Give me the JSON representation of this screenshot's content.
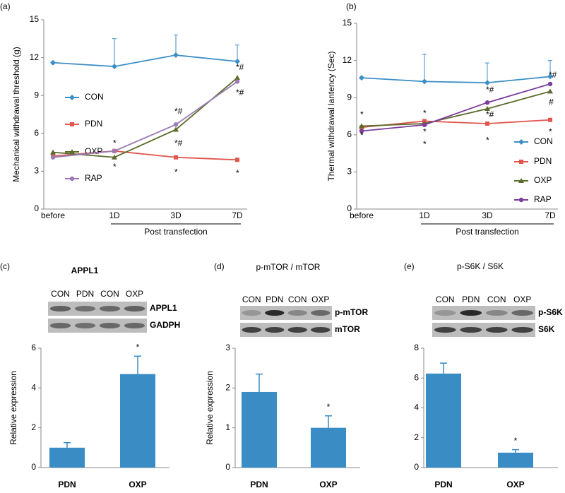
{
  "chart_data": [
    {
      "type": "line",
      "panel": "(a)",
      "ylabel": "Mechanical withdrawal threshold (g)",
      "xlabel": "Post transfection",
      "categories": [
        "before",
        "1D",
        "3D",
        "7D"
      ],
      "ylim": [
        0,
        15
      ],
      "yticks": [
        0,
        3,
        6,
        9,
        12,
        15
      ],
      "series": [
        {
          "name": "CON",
          "color": "#3b8fc7",
          "marker": "diamond",
          "values": [
            11.6,
            11.3,
            12.2,
            11.7
          ],
          "errors": [
            null,
            2.2,
            1.6,
            1.3
          ]
        },
        {
          "name": "PDN",
          "color": "#e0564e",
          "marker": "square",
          "values": [
            4.2,
            4.6,
            4.1,
            3.9
          ]
        },
        {
          "name": "OXP",
          "color": "#5a6b2a",
          "marker": "triangle",
          "values": [
            4.5,
            4.1,
            6.3,
            10.4
          ]
        },
        {
          "name": "RAP",
          "color": "#9b7ab5",
          "marker": "circle",
          "values": [
            4.1,
            4.6,
            6.7,
            10.1
          ]
        }
      ],
      "annotations": [
        {
          "text": "*",
          "x": "1D",
          "y": 5.2
        },
        {
          "text": "*",
          "x": "1D",
          "y": 3.3
        },
        {
          "text": "*",
          "x": "3D",
          "y": 2.9
        },
        {
          "text": "*#",
          "x": "3D",
          "y": 7.7
        },
        {
          "text": "*#",
          "x": "3D",
          "y": 5.2
        },
        {
          "text": "*#",
          "x": "7D",
          "y": 11.2
        },
        {
          "text": "*#",
          "x": "7D",
          "y": 9.2
        },
        {
          "text": "*",
          "x": "7D",
          "y": 2.8
        }
      ]
    },
    {
      "type": "line",
      "panel": "(b)",
      "ylabel": "Thermal withdrawal lantency (Sec)",
      "xlabel": "Post transfection",
      "categories": [
        "before",
        "1D",
        "3D",
        "7D"
      ],
      "ylim": [
        0,
        15
      ],
      "yticks": [
        0,
        3,
        6,
        9,
        12,
        15
      ],
      "series": [
        {
          "name": "CON",
          "color": "#3b8fc7",
          "marker": "diamond",
          "values": [
            10.6,
            10.3,
            10.2,
            10.7
          ],
          "errors": [
            null,
            2.2,
            1.6,
            1.3
          ]
        },
        {
          "name": "PDN",
          "color": "#e0564e",
          "marker": "square",
          "values": [
            6.6,
            7.1,
            6.9,
            7.2
          ]
        },
        {
          "name": "OXP",
          "color": "#5a6b2a",
          "marker": "triangle",
          "values": [
            6.7,
            6.9,
            8.1,
            9.5
          ]
        },
        {
          "name": "RAP",
          "color": "#7b3d9a",
          "marker": "circle",
          "values": [
            6.3,
            6.8,
            8.6,
            10.1
          ]
        }
      ],
      "annotations": [
        {
          "text": "*",
          "x": "before",
          "y": 7.6
        },
        {
          "text": "*",
          "x": "before",
          "y": 5.9
        },
        {
          "text": "*",
          "x": "1D",
          "y": 7.7
        },
        {
          "text": "*",
          "x": "1D",
          "y": 6.2
        },
        {
          "text": "*",
          "x": "1D",
          "y": 5.2
        },
        {
          "text": "*#",
          "x": "3D",
          "y": 9.6
        },
        {
          "text": "*#",
          "x": "3D",
          "y": 7.6
        },
        {
          "text": "*",
          "x": "3D",
          "y": 5.5
        },
        {
          "text": "*#",
          "x": "7D",
          "y": 10.8
        },
        {
          "text": "#",
          "x": "7D",
          "y": 8.6
        },
        {
          "text": "*",
          "x": "7D",
          "y": 6.2
        }
      ]
    },
    {
      "type": "bar",
      "panel": "(c)",
      "title": "APPL1",
      "ylabel": "Relative expression",
      "color": "#3a8cc4",
      "categories": [
        "PDN",
        "OXP"
      ],
      "values": [
        1.0,
        4.7
      ],
      "errors": [
        0.25,
        0.9
      ],
      "ylim": [
        0,
        6
      ],
      "yticks": [
        0,
        2,
        4,
        6
      ],
      "annotations": [
        {
          "text": "*",
          "x": "OXP"
        }
      ],
      "blot": {
        "lanes": [
          "CON",
          "PDN",
          "CON",
          "OXP"
        ],
        "rows": [
          "APPL1",
          "GADPH"
        ]
      }
    },
    {
      "type": "bar",
      "panel": "(d)",
      "title": "p-mTOR / mTOR",
      "ylabel": "Relative expression",
      "color": "#3a8cc4",
      "categories": [
        "PDN",
        "OXP"
      ],
      "values": [
        1.9,
        1.0
      ],
      "errors": [
        0.45,
        0.3
      ],
      "ylim": [
        0,
        3
      ],
      "yticks": [
        0,
        1,
        2,
        3
      ],
      "annotations": [
        {
          "text": "*",
          "x": "OXP"
        }
      ],
      "blot": {
        "lanes": [
          "CON",
          "PDN",
          "CON",
          "OXP"
        ],
        "rows": [
          "p-mTOR",
          "mTOR"
        ]
      }
    },
    {
      "type": "bar",
      "panel": "(e)",
      "title": "p-S6K / S6K",
      "color": "#3a8cc4",
      "categories": [
        "PDN",
        "OXP"
      ],
      "values": [
        6.3,
        1.0
      ],
      "errors": [
        0.7,
        0.2
      ],
      "ylim": [
        0,
        8
      ],
      "yticks": [
        0,
        2,
        4,
        6,
        8
      ],
      "annotations": [
        {
          "text": "*",
          "x": "OXP"
        }
      ],
      "blot": {
        "lanes": [
          "CON",
          "PDN",
          "CON",
          "OXP"
        ],
        "rows": [
          "p-S6K",
          "S6K"
        ]
      }
    }
  ]
}
